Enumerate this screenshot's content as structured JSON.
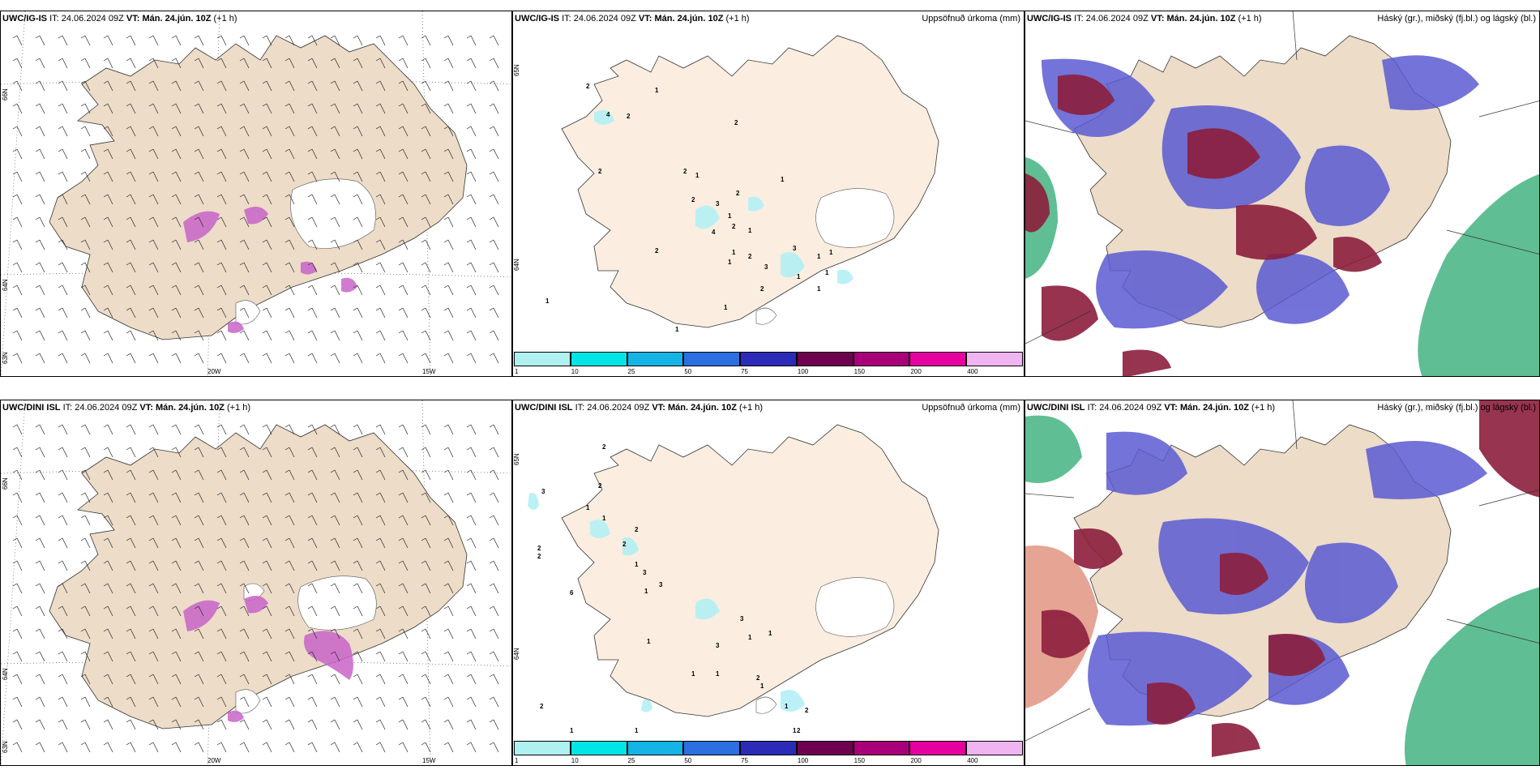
{
  "rows": [
    {
      "model": "UWC/IG-IS",
      "it_label": "IT:",
      "it_value": "24.06.2024 09Z",
      "vt_label": "VT:",
      "vt_value": "Mán. 24.jún. 10Z",
      "lead": "(+1 h)"
    },
    {
      "model": "UWC/DINI ISL",
      "it_label": "IT:",
      "it_value": "24.06.2024 09Z",
      "vt_label": "VT:",
      "vt_value": "Mán. 24.jún. 10Z",
      "lead": "(+1 h)"
    }
  ],
  "precip_title": "Uppsöfnuð úrkoma (mm)",
  "cloud_title": "Háský (gr.), miðský (fj.bl.) og lágský (bl.)",
  "lat_labels": [
    "66N",
    "64N",
    "63N"
  ],
  "lat_labels_mid": [
    "65N",
    "64N"
  ],
  "lon_labels": [
    "20W",
    "15W"
  ],
  "colorbar_ticks": [
    "1",
    "10",
    "25",
    "50",
    "75",
    "100",
    "150",
    "200",
    "400"
  ],
  "colorbar_colors": [
    "#aff0f0",
    "#00e5e5",
    "#14b4e6",
    "#2b6fe0",
    "#2b2bb8",
    "#6e0050",
    "#a80078",
    "#e600a0",
    "#f0b4f0"
  ],
  "colors": {
    "land": "#ecdcc8",
    "land_light": "#fbeee0",
    "ice": "#ffffff",
    "precip": "#b4f0f5",
    "snow": "#c864c8",
    "high_cloud": "#2aa870",
    "mid_cloud": "#5a5ad2",
    "low_cloud": "#8c1e3c"
  },
  "precip_numbers_top": [
    "2",
    "4",
    "2",
    "1",
    "2",
    "2",
    "2",
    "1",
    "1",
    "2",
    "3",
    "1",
    "2",
    "2",
    "4",
    "1",
    "2",
    "1",
    "2",
    "3",
    "1",
    "2",
    "1",
    "1",
    "1",
    "3",
    "1",
    "1",
    "1",
    "1",
    "1"
  ],
  "precip_numbers_bottom": [
    "2",
    "3",
    "2",
    "1",
    "1",
    "2",
    "2",
    "1",
    "3",
    "1",
    "3",
    "2",
    "2",
    "6",
    "1",
    "1",
    "3",
    "1",
    "3",
    "1",
    "1",
    "2",
    "1",
    "1",
    "2",
    "2",
    "1",
    "2",
    "1",
    "1"
  ]
}
